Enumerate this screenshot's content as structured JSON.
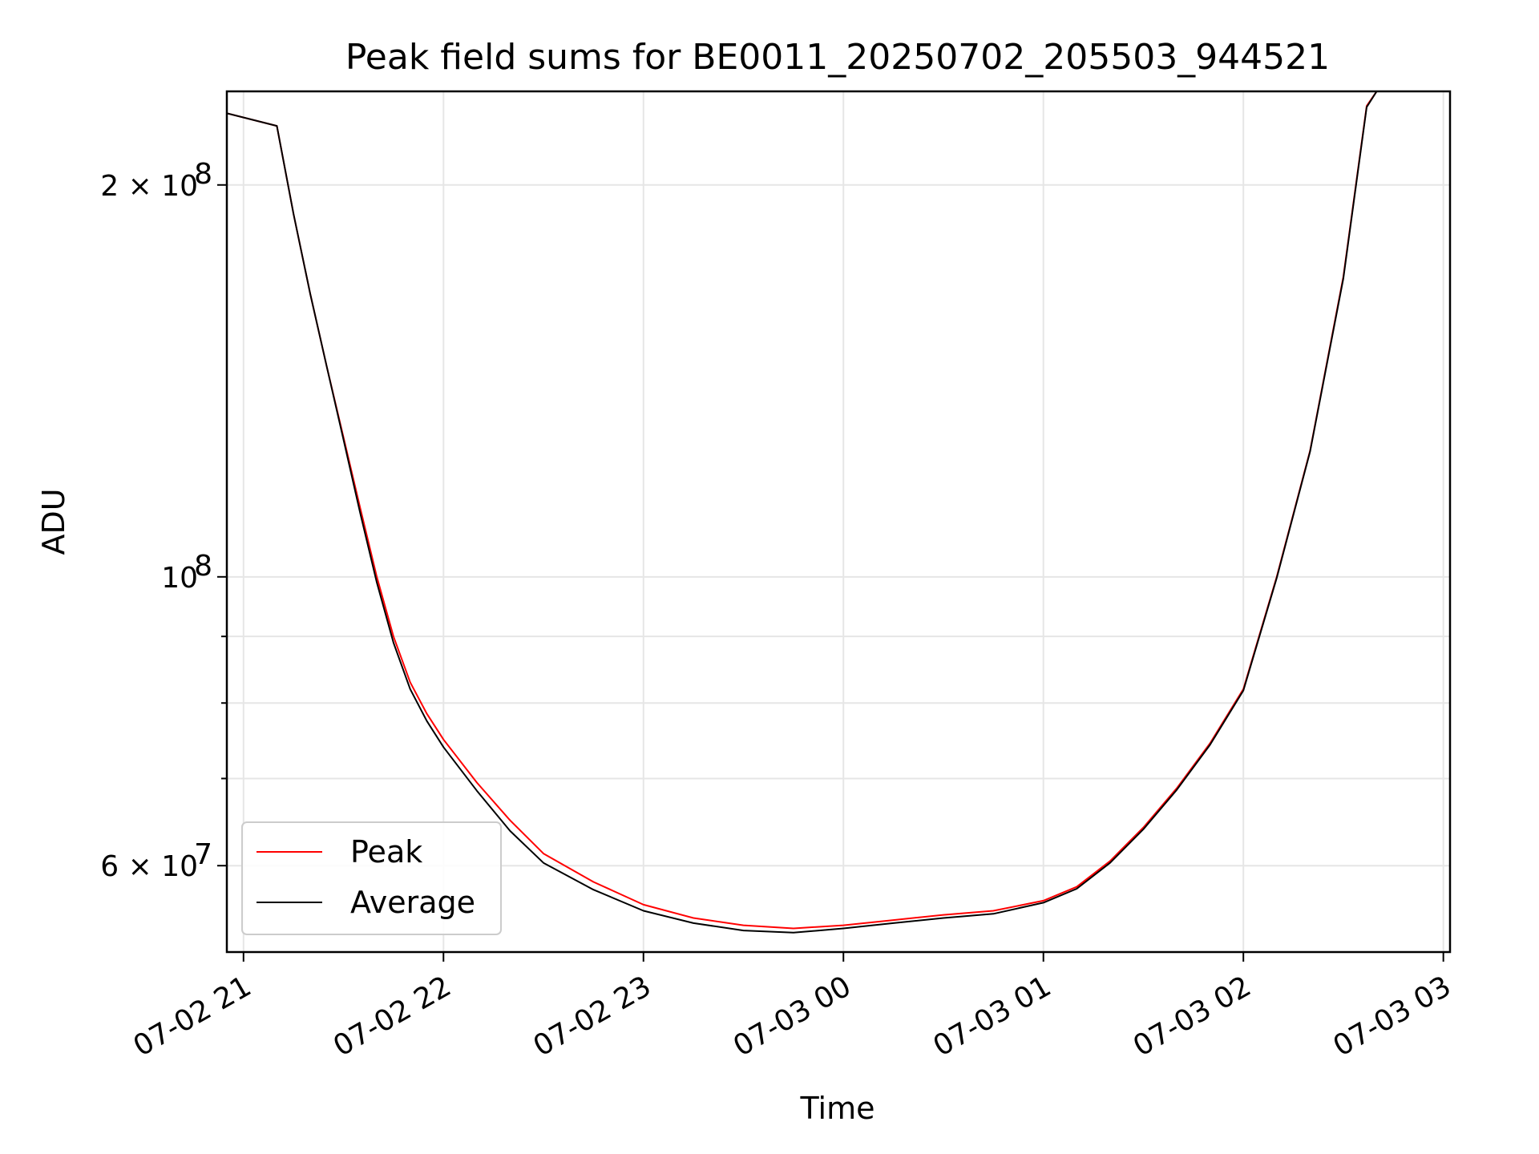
{
  "chart_data": {
    "type": "line",
    "title": "Peak field sums for BE0011_20250702_205503_944521",
    "xlabel": "Time",
    "ylabel": "ADU",
    "yscale": "log",
    "xlim": [
      "2025-07-02 20:55",
      "2025-07-03 03:02"
    ],
    "ylim": [
      51500000,
      236000000
    ],
    "grid": true,
    "legend_position": "lower-left",
    "x_ticks": [
      {
        "t": "2025-07-02 21:00",
        "label": "07-02 21"
      },
      {
        "t": "2025-07-02 22:00",
        "label": "07-02 22"
      },
      {
        "t": "2025-07-02 23:00",
        "label": "07-02 23"
      },
      {
        "t": "2025-07-03 00:00",
        "label": "07-03 00"
      },
      {
        "t": "2025-07-03 01:00",
        "label": "07-03 01"
      },
      {
        "t": "2025-07-03 02:00",
        "label": "07-03 02"
      },
      {
        "t": "2025-07-03 03:00",
        "label": "07-03 03"
      }
    ],
    "y_ticks_major": [
      {
        "value": 60000000,
        "label_base": "6 × 10",
        "label_exp": "7"
      },
      {
        "value": 100000000,
        "label_base": "10",
        "label_exp": "8"
      },
      {
        "value": 200000000,
        "label_base": "2 × 10",
        "label_exp": "8"
      }
    ],
    "y_ticks_minor": [
      70000000,
      80000000,
      90000000
    ],
    "series": [
      {
        "name": "Peak",
        "color": "#ff0000",
        "x": [
          "2025-07-02 20:55",
          "2025-07-02 21:10",
          "2025-07-02 21:15",
          "2025-07-02 21:20",
          "2025-07-02 21:25",
          "2025-07-02 21:30",
          "2025-07-02 21:35",
          "2025-07-02 21:40",
          "2025-07-02 21:45",
          "2025-07-02 21:50",
          "2025-07-02 21:55",
          "2025-07-02 22:00",
          "2025-07-02 22:10",
          "2025-07-02 22:20",
          "2025-07-02 22:30",
          "2025-07-02 22:45",
          "2025-07-02 23:00",
          "2025-07-02 23:15",
          "2025-07-02 23:30",
          "2025-07-02 23:45",
          "2025-07-03 00:00",
          "2025-07-03 00:15",
          "2025-07-03 00:30",
          "2025-07-03 00:45",
          "2025-07-03 01:00",
          "2025-07-03 01:10",
          "2025-07-03 01:20",
          "2025-07-03 01:30",
          "2025-07-03 01:40",
          "2025-07-03 01:50",
          "2025-07-03 02:00",
          "2025-07-03 02:10",
          "2025-07-03 02:20",
          "2025-07-03 02:30",
          "2025-07-03 02:37",
          "2025-07-03 02:40"
        ],
        "y": [
          227000000,
          222000000,
          190000000,
          165000000,
          145000000,
          128000000,
          113000000,
          100000000,
          90000000,
          83000000,
          78500000,
          75000000,
          69500000,
          65000000,
          61300000,
          58300000,
          56000000,
          54700000,
          54000000,
          53700000,
          54000000,
          54500000,
          55000000,
          55400000,
          56400000,
          57800000,
          60500000,
          64200000,
          68800000,
          74500000,
          82000000,
          100000000,
          125000000,
          170000000,
          230000000,
          236000000
        ]
      },
      {
        "name": "Average",
        "color": "#000000",
        "x": [
          "2025-07-02 20:55",
          "2025-07-02 21:10",
          "2025-07-02 21:15",
          "2025-07-02 21:20",
          "2025-07-02 21:25",
          "2025-07-02 21:30",
          "2025-07-02 21:35",
          "2025-07-02 21:40",
          "2025-07-02 21:45",
          "2025-07-02 21:50",
          "2025-07-02 21:55",
          "2025-07-02 22:00",
          "2025-07-02 22:10",
          "2025-07-02 22:20",
          "2025-07-02 22:30",
          "2025-07-02 22:45",
          "2025-07-02 23:00",
          "2025-07-02 23:15",
          "2025-07-02 23:30",
          "2025-07-02 23:45",
          "2025-07-03 00:00",
          "2025-07-03 00:15",
          "2025-07-03 00:30",
          "2025-07-03 00:45",
          "2025-07-03 01:00",
          "2025-07-03 01:10",
          "2025-07-03 01:20",
          "2025-07-03 01:30",
          "2025-07-03 01:40",
          "2025-07-03 01:50",
          "2025-07-03 02:00",
          "2025-07-03 02:10",
          "2025-07-03 02:20",
          "2025-07-03 02:30",
          "2025-07-03 02:37",
          "2025-07-03 02:40"
        ],
        "y": [
          227000000,
          222000000,
          190000000,
          165000000,
          145000000,
          127500000,
          112000000,
          99000000,
          89000000,
          82000000,
          77500000,
          74000000,
          68500000,
          63800000,
          60300000,
          57500000,
          55400000,
          54200000,
          53500000,
          53300000,
          53700000,
          54200000,
          54700000,
          55100000,
          56200000,
          57600000,
          60300000,
          64000000,
          68600000,
          74300000,
          81800000,
          99800000,
          124800000,
          169500000,
          229500000,
          236000000
        ]
      }
    ]
  }
}
